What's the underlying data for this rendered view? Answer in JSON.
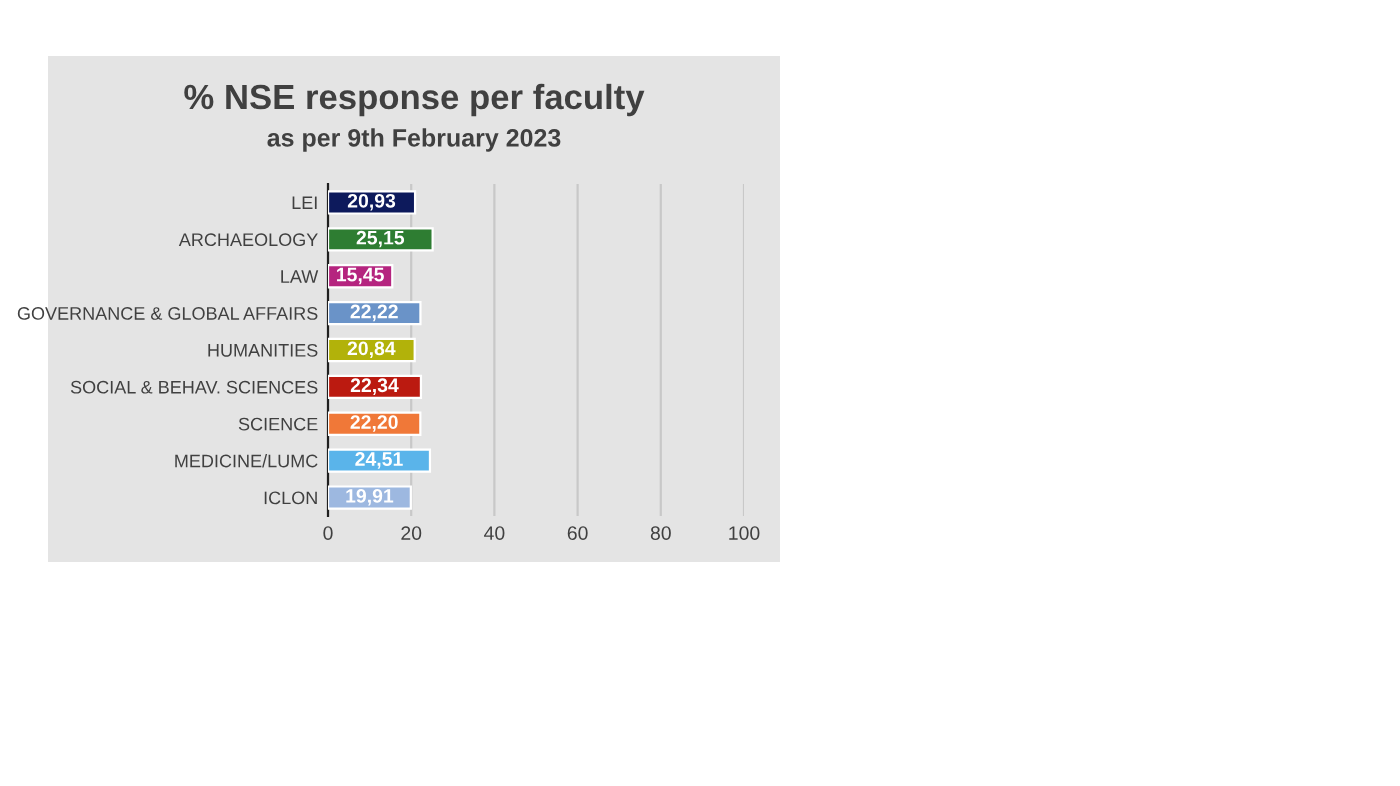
{
  "chart_data": {
    "type": "bar",
    "orientation": "horizontal",
    "title": "% NSE response per faculty",
    "subtitle": "as per 9th February 2023",
    "categories": [
      "LEI",
      "ARCHAEOLOGY",
      "LAW",
      "GOVERNANCE & GLOBAL AFFAIRS",
      "HUMANITIES",
      "SOCIAL & BEHAV. SCIENCES",
      "SCIENCE",
      "MEDICINE/LUMC",
      "ICLON"
    ],
    "values": [
      20.93,
      25.15,
      15.45,
      22.22,
      20.84,
      22.34,
      22.2,
      24.51,
      19.91
    ],
    "value_labels": [
      "20,93",
      "25,15",
      "15,45",
      "22,22",
      "20,84",
      "22,34",
      "22,20",
      "24,51",
      "19,91"
    ],
    "colors": [
      "#0d1a5c",
      "#2e7d32",
      "#b5247f",
      "#6a93c8",
      "#b2b20a",
      "#bb1a10",
      "#f07838",
      "#5ab4ea",
      "#9db8e0"
    ],
    "xlim": [
      0,
      100
    ],
    "xticks": [
      0,
      20,
      40,
      60,
      80,
      100
    ],
    "grid": "x",
    "legend": false
  }
}
